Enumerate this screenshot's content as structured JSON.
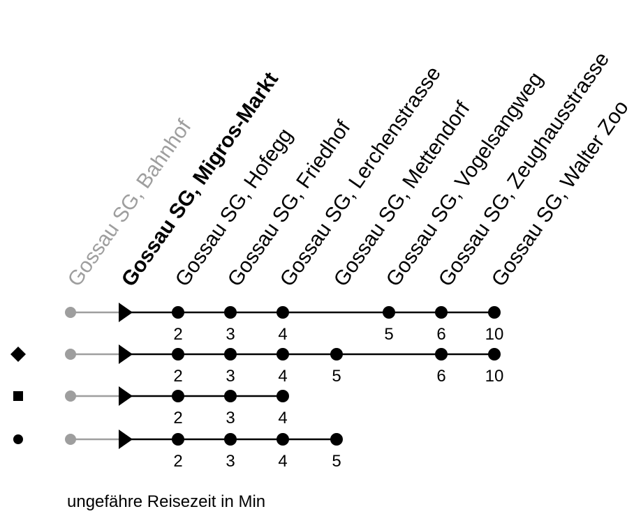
{
  "stops": [
    {
      "name": "Gossau SG, Bahnhof",
      "style": "past"
    },
    {
      "name": "Gossau SG, Migros-Markt",
      "style": "current"
    },
    {
      "name": "Gossau SG, Hofegg",
      "style": "normal"
    },
    {
      "name": "Gossau SG, Friedhof",
      "style": "normal"
    },
    {
      "name": "Gossau SG, Lerchenstrasse",
      "style": "normal"
    },
    {
      "name": "Gossau SG, Mettendorf",
      "style": "normal"
    },
    {
      "name": "Gossau SG, Vogelsangweg",
      "style": "normal"
    },
    {
      "name": "Gossau SG, Zeughausstrasse",
      "style": "normal"
    },
    {
      "name": "Gossau SG, Walter Zoo",
      "style": "normal"
    }
  ],
  "routes": [
    {
      "symbol": "none",
      "times": {
        "2": "2",
        "3": "3",
        "4": "4",
        "6": "5",
        "7": "6",
        "8": "10"
      }
    },
    {
      "symbol": "diamond",
      "times": {
        "2": "2",
        "3": "3",
        "4": "4",
        "5": "5",
        "7": "6",
        "8": "10"
      }
    },
    {
      "symbol": "square",
      "times": {
        "2": "2",
        "3": "3",
        "4": "4"
      }
    },
    {
      "symbol": "circle",
      "times": {
        "2": "2",
        "3": "3",
        "4": "4",
        "5": "5"
      }
    }
  ],
  "colors": {
    "past": "#9e9e9e",
    "line": "#000000"
  },
  "footer": "ungefähre Reisezeit in Min"
}
